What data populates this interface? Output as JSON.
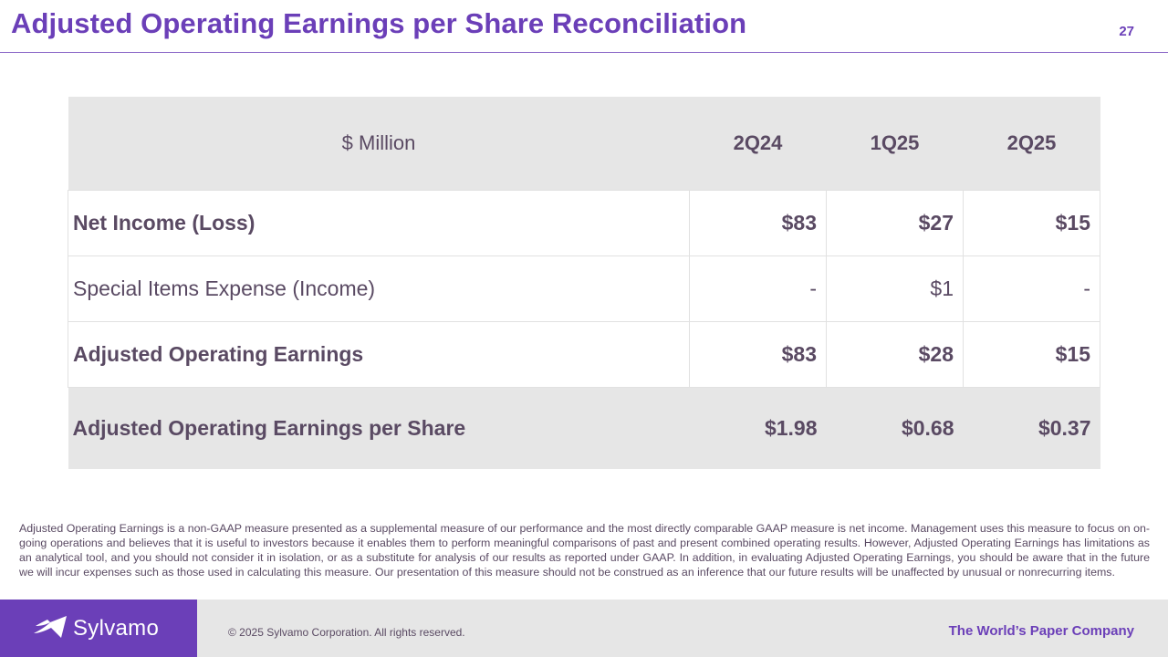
{
  "slide": {
    "title": "Adjusted Operating Earnings per Share Reconciliation",
    "page_number": "27"
  },
  "table": {
    "header_label": "$ Million",
    "periods": [
      "2Q24",
      "1Q25",
      "2Q25"
    ],
    "rows": [
      {
        "label": "Net Income (Loss)",
        "values": [
          "$83",
          "$27",
          "$15"
        ]
      },
      {
        "label": "Special Items Expense (Income)",
        "values": [
          "-",
          "$1",
          "-"
        ]
      },
      {
        "label": "Adjusted Operating Earnings",
        "values": [
          "$83",
          "$28",
          "$15"
        ]
      },
      {
        "label": "Adjusted Operating Earnings per Share",
        "values": [
          "$1.98",
          "$0.68",
          "$0.37"
        ]
      }
    ]
  },
  "footnote": "Adjusted Operating Earnings is a non-GAAP measure presented as a supplemental measure of our performance and the most directly comparable GAAP measure is net income. Management uses this measure to focus on on-going operations and believes that it is useful to investors because it enables them to perform meaningful comparisons of past and present combined operating results. However, Adjusted Operating Earnings has limitations as an analytical tool, and you should not consider it in isolation, or as a substitute for analysis of our results as reported under GAAP. In addition, in evaluating Adjusted Operating Earnings, you should be aware that in the future we will incur expenses such as those used in calculating this measure. Our presentation of this measure should not be construed as an inference that our future results will be unaffected by unusual or nonrecurring items.",
  "footer": {
    "logo_text": "Sylvamo",
    "logo_icon": "sylvamo-flag-icon",
    "copyright": "© 2025 Sylvamo Corporation. All rights reserved.",
    "tagline": "The World’s Paper Company"
  },
  "colors": {
    "brand_purple": "#6b3fb8",
    "text": "#5a4a63",
    "table_fill": "#e6e6e6"
  }
}
